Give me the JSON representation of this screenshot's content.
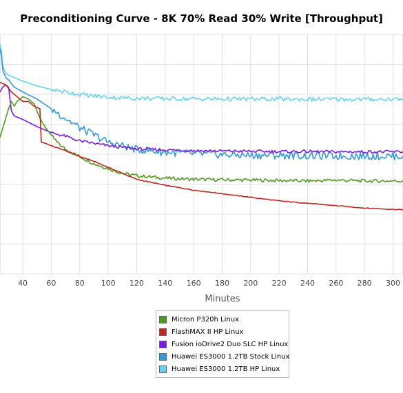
{
  "chart_data": {
    "type": "line",
    "title": "Preconditioning Curve - 8K 70% Read 30% Write [Throughput]",
    "xlabel": "Minutes",
    "ylabel": "",
    "xlim": [
      24,
      307
    ],
    "ylim": [
      0,
      100
    ],
    "x_ticks": [
      "40",
      "60",
      "80",
      "100",
      "120",
      "140",
      "160",
      "180",
      "200",
      "220",
      "240",
      "260",
      "280",
      "300"
    ],
    "grid": true,
    "legend_position": "bottom-center",
    "series": [
      {
        "name": "Micron P320h Linux",
        "color": "#4f9a1f",
        "x": [
          24,
          27,
          30,
          32,
          34,
          36,
          40,
          44,
          48,
          52,
          56,
          60,
          64,
          70,
          80,
          90,
          100,
          110,
          120,
          140,
          160,
          180,
          200,
          220,
          240,
          260,
          280,
          307
        ],
        "y": [
          57,
          63,
          69,
          72,
          70,
          72,
          74,
          73,
          71,
          65,
          61,
          58,
          55,
          52,
          49,
          46,
          44,
          42,
          41,
          40,
          39.5,
          39.3,
          39.2,
          39,
          38.8,
          39.2,
          38.8,
          38.8
        ]
      },
      {
        "name": "FlashMAX II HP Linux",
        "color": "#c2241f",
        "x": [
          24,
          28,
          32,
          36,
          40,
          44,
          48,
          52,
          53,
          56,
          60,
          70,
          80,
          90,
          100,
          110,
          120,
          140,
          160,
          180,
          200,
          220,
          240,
          260,
          280,
          307
        ],
        "y": [
          80,
          79,
          76,
          74,
          72,
          72,
          70,
          69,
          55,
          54.5,
          53.5,
          51.5,
          49,
          47,
          44.5,
          42,
          39.5,
          37,
          35,
          33.5,
          32,
          30.5,
          29.5,
          28.5,
          27.5,
          26.8
        ]
      },
      {
        "name": "Fusion ioDrive2 Duo SLC HP Linux",
        "color": "#7a1ae6",
        "x": [
          24,
          26,
          28,
          30,
          32,
          34,
          36,
          40,
          50,
          60,
          70,
          80,
          90,
          100,
          110,
          120,
          140,
          160,
          180,
          200,
          220,
          240,
          260,
          280,
          307
        ],
        "y": [
          76,
          78,
          79,
          78,
          68,
          66,
          65.5,
          64.5,
          61.5,
          59,
          57.5,
          55.5,
          54.5,
          53.5,
          52.8,
          52.2,
          51.8,
          51.5,
          51.3,
          51.2,
          51.1,
          51.1,
          51,
          51,
          51
        ]
      },
      {
        "name": "Huawei ES3000 1.2TB Stock Linux",
        "color": "#3399dd",
        "x": [
          24,
          25,
          26,
          28,
          30,
          34,
          40,
          50,
          60,
          70,
          80,
          90,
          100,
          110,
          120,
          140,
          160,
          180,
          200,
          220,
          240,
          260,
          280,
          307
        ],
        "y": [
          94,
          91,
          85,
          82,
          81,
          78,
          76,
          73,
          69,
          65,
          61,
          58,
          55,
          53.5,
          52,
          50.8,
          50.2,
          49.8,
          49.5,
          49.5,
          49.3,
          49.2,
          49.2,
          49.2
        ]
      },
      {
        "name": "Huawei ES3000 1.2TB HP Linux",
        "color": "#66d1f5",
        "x": [
          24,
          25,
          26,
          27,
          28,
          30,
          34,
          40,
          50,
          60,
          70,
          80,
          90,
          100,
          110,
          120,
          140,
          160,
          180,
          200,
          220,
          240,
          260,
          280,
          307
        ],
        "y": [
          96,
          93,
          87,
          85,
          84,
          83,
          82,
          80.5,
          78.5,
          77,
          76,
          75,
          74.3,
          73.8,
          73.5,
          73.3,
          73.2,
          73.1,
          73,
          73,
          73,
          72.9,
          72.9,
          72.9,
          73
        ]
      }
    ]
  }
}
